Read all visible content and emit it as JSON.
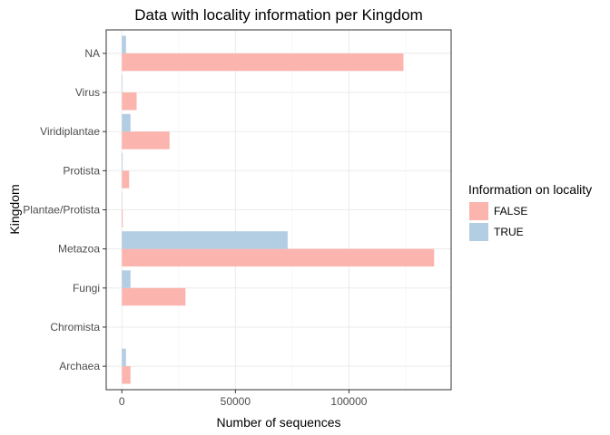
{
  "chart_data": {
    "type": "bar",
    "orientation": "horizontal",
    "title": "Data with locality information per Kingdom",
    "xlabel": "Number of sequences",
    "ylabel": "Kingdom",
    "categories": [
      "Archaea",
      "Chromista",
      "Fungi",
      "Metazoa",
      "Plantae/Protista",
      "Protista",
      "Viridiplantae",
      "Virus",
      "NA"
    ],
    "series": [
      {
        "name": "FALSE",
        "color": "#fbb4ae",
        "values": [
          3800,
          0,
          28000,
          137500,
          400,
          3200,
          21000,
          6500,
          124000
        ]
      },
      {
        "name": "TRUE",
        "color": "#b3cde3",
        "values": [
          1800,
          0,
          3800,
          73000,
          150,
          350,
          3800,
          250,
          1800
        ]
      }
    ],
    "xlim": [
      -6900,
      145000
    ],
    "xticks": [
      0,
      50000,
      100000
    ],
    "xtick_labels": [
      "0",
      "50000",
      "100000"
    ],
    "grid": true,
    "legend": {
      "title": "Information on locality",
      "position": "right"
    }
  }
}
